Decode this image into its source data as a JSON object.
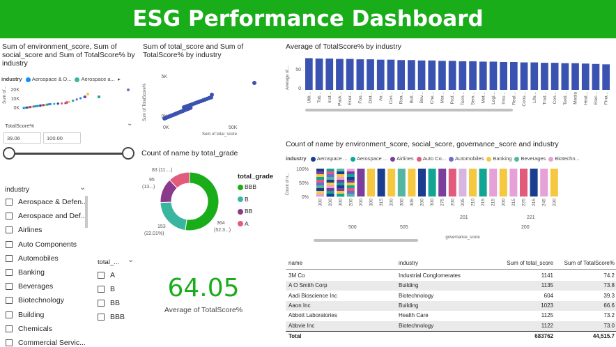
{
  "header": {
    "title": "ESG Performance Dashboard"
  },
  "scatter1": {
    "title": "Sum of environment_score, Sum of social_score and Sum of TotalScore% by industry",
    "legend_label": "industry",
    "legend_items": [
      {
        "name": "Aerospace & D...",
        "color": "#118dff"
      },
      {
        "name": "Aerospace a...",
        "color": "#3ab6a0"
      }
    ],
    "y_axis_label": "Sum of...",
    "y_ticks": [
      "20K",
      "10K",
      "0K"
    ],
    "chart_data": {
      "type": "scatter",
      "xlabel": "",
      "ylabel": "Sum of...",
      "y_ticks": [
        "0K",
        "10K",
        "20K"
      ]
    }
  },
  "slider": {
    "label": "TotalScore%",
    "min_value": "39.06",
    "max_value": "100.00"
  },
  "industry_slicer": {
    "label": "industry",
    "items": [
      "Aerospace & Defen...",
      "Aerospace and Def...",
      "Airlines",
      "Auto Components",
      "Automobiles",
      "Banking",
      "Beverages",
      "Biotechnology",
      "Building",
      "Chemicals",
      "Commercial Servic..."
    ]
  },
  "grade_slicer": {
    "label": "total_...",
    "items": [
      "A",
      "B",
      "BB",
      "BBB"
    ]
  },
  "scatter2": {
    "title": "Sum of total_score and Sum of TotalScore% by industry",
    "y_axis_label": "Sum of TotalScore%",
    "x_axis_label": "Sum of total_score",
    "y_ticks": [
      "5K",
      "0K"
    ],
    "x_ticks": [
      "0K",
      "50K"
    ],
    "chart_data": {
      "type": "scatter",
      "xlabel": "Sum of total_score",
      "ylabel": "Sum of TotalScore%",
      "xlim": [
        0,
        60000
      ],
      "ylim": [
        0,
        6000
      ]
    }
  },
  "donut": {
    "title": "Count of name by total_grade",
    "legend_title": "total_grade",
    "labels": {
      "a": "83 (11....)",
      "bb": "95",
      "bb2": "(13...)",
      "b": "153",
      "b2": "(22.01%)",
      "bbb": "364",
      "bbb2": "(52.3...)"
    },
    "chart_data": {
      "type": "pie",
      "categories": [
        "BBB",
        "B",
        "BB",
        "A"
      ],
      "values": [
        364,
        153,
        95,
        83
      ],
      "colors": [
        "#1aad1a",
        "#3ab6a0",
        "#8b3a8b",
        "#e35b7c"
      ]
    }
  },
  "card": {
    "value": "64.05",
    "label": "Average of TotalScore%"
  },
  "bar1": {
    "title": "Average of TotalScore% by industry",
    "y_axis_label": "Average of...",
    "y_ticks": [
      "50",
      "0"
    ],
    "chart_data": {
      "type": "bar",
      "categories": [
        "Utili...",
        "Tob...",
        "Inst...",
        "Pack...",
        "Ener...",
        "Foo...",
        "Dist...",
        "Air...",
        "Con...",
        "Roa...",
        "Buil...",
        "Bev...",
        "Che...",
        "Mar...",
        "Prof...",
        "Tech...",
        "Sem...",
        "Met...",
        "Logi...",
        "Insu...",
        "Real...",
        "Cons...",
        "Life...",
        "Trad...",
        "Con...",
        "Texti...",
        "Media",
        "Heal...",
        "Elec...",
        "Fina..."
      ],
      "values": [
        82,
        81,
        81,
        80,
        80,
        79,
        79,
        78,
        78,
        77,
        77,
        76,
        76,
        75,
        75,
        74,
        74,
        73,
        73,
        72,
        72,
        71,
        71,
        70,
        70,
        69,
        69,
        68,
        67,
        66
      ],
      "ylim": [
        0,
        90
      ],
      "color": "#3a53b0"
    }
  },
  "bar2": {
    "title": "Count of name by environment_score, social_score, governance_score and industry",
    "legend_label": "industry",
    "legend_items": [
      {
        "name": "Aerospace ...",
        "color": "#1a3d8f"
      },
      {
        "name": "Aerospace ...",
        "color": "#12a594"
      },
      {
        "name": "Airlines",
        "color": "#7a3e9c"
      },
      {
        "name": "Auto Co...",
        "color": "#e35b7c"
      },
      {
        "name": "Automobiles",
        "color": "#6c6cd0"
      },
      {
        "name": "Banking",
        "color": "#f5c842"
      },
      {
        "name": "Beverages",
        "color": "#53b6a0"
      },
      {
        "name": "Biotechn...",
        "color": "#e6a1d8"
      }
    ],
    "y_axis_label": "Count of n...",
    "y_ticks": [
      "100%",
      "50%",
      "0%"
    ],
    "x_labels_top": [
      "300",
      "200",
      "300",
      "200",
      "200",
      "300",
      "315",
      "200",
      "300",
      "305",
      "200",
      "300",
      "275",
      "200",
      "205",
      "210",
      "215",
      "215",
      "200",
      "215",
      "225",
      "215",
      "245",
      "230"
    ],
    "group_labels_mid": [
      "500",
      "505",
      "201",
      "221"
    ],
    "group_label_low": "200",
    "x_axis_label": "governance_score",
    "chart_data": {
      "type": "bar",
      "stacked": true,
      "percent": true,
      "x_axis": "governance_score",
      "categories": [
        "300",
        "200",
        "300",
        "200",
        "200",
        "300",
        "315",
        "200",
        "300",
        "305",
        "200",
        "300",
        "275",
        "200",
        "205",
        "210",
        "215",
        "215",
        "200",
        "215",
        "225",
        "215",
        "245",
        "230"
      ],
      "bar_colors": [
        "#mixed",
        "#mixed",
        "#mixed",
        "#mixed",
        "#7a3e9c",
        "#f5c842",
        "#1a3d8f",
        "#f5c842",
        "#53b6a0",
        "#f5c842",
        "#1a3d8f",
        "#12a594",
        "#7a3e9c",
        "#e35b7c",
        "#d8b4e0",
        "#f5c842",
        "#12a594",
        "#e6a1d8",
        "#f5c842",
        "#e6a1d8",
        "#e35b7c",
        "#1a3d8f",
        "#e6a1d8",
        "#f5c842"
      ]
    }
  },
  "table": {
    "columns": [
      "name",
      "industry",
      "Sum of total_score",
      "Sum of TotalScore%"
    ],
    "rows": [
      [
        "3M Co",
        "Industrial Conglomerates",
        "1141",
        "74.2"
      ],
      [
        "A O Smith Corp",
        "Building",
        "1135",
        "73.8"
      ],
      [
        "Aadi Bioscience Inc",
        "Biotechnology",
        "604",
        "39.3"
      ],
      [
        "Aaon Inc",
        "Building",
        "1023",
        "66.6"
      ],
      [
        "Abbott Laboratories",
        "Health Care",
        "1125",
        "73.2"
      ],
      [
        "Abbvie Inc",
        "Biotechnology",
        "1122",
        "73.0"
      ]
    ],
    "total": [
      "Total",
      "",
      "683762",
      "44,515.7"
    ]
  }
}
